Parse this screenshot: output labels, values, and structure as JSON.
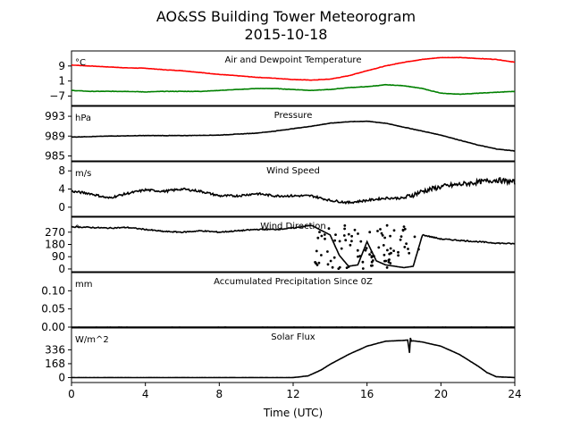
{
  "title": "AO&SS Building Tower Meteorogram",
  "subtitle": "2015-10-18",
  "chart_data": {
    "type": "line",
    "xlabel": "Time (UTC)",
    "xlim": [
      0,
      24
    ],
    "xticks": [
      "0",
      "4",
      "8",
      "12",
      "16",
      "20",
      "24"
    ],
    "grid": false,
    "panels": [
      {
        "title": "Air and Dewpoint Temperature",
        "unit": "°C",
        "ylim": [
          -12,
          17
        ],
        "yticks": [
          "9",
          "1",
          "−7"
        ],
        "ytick_values": [
          9,
          1,
          -7
        ],
        "series": [
          {
            "color": "#ff0000",
            "x": [
              0,
              1,
              2,
              3,
              4,
              5,
              6,
              7,
              8,
              9,
              10,
              11,
              12,
              13,
              14,
              15,
              16,
              17,
              18,
              19,
              20,
              21,
              22,
              23,
              24
            ],
            "values": [
              9.5,
              9,
              8.5,
              8,
              7.8,
              7,
              6.5,
              5.5,
              4.5,
              3.8,
              3,
              2.5,
              1.8,
              1.5,
              2,
              3.8,
              6.5,
              9,
              11,
              12.5,
              13.5,
              13.5,
              13,
              12.5,
              11
            ]
          },
          {
            "color": "#008000",
            "x": [
              0,
              1,
              2,
              3,
              4,
              5,
              6,
              7,
              8,
              9,
              10,
              11,
              12,
              13,
              14,
              15,
              16,
              17,
              18,
              19,
              20,
              21,
              22,
              23,
              24
            ],
            "values": [
              -4,
              -4.5,
              -4.5,
              -4.5,
              -4.8,
              -4.5,
              -4.5,
              -4.5,
              -4,
              -3.5,
              -3,
              -3,
              -3.5,
              -4,
              -3.5,
              -2.5,
              -2,
              -1,
              -1.5,
              -3,
              -5.5,
              -6,
              -5.5,
              -5,
              -4.5
            ]
          }
        ]
      },
      {
        "title": "Pressure",
        "unit": "hPa",
        "ylim": [
          984,
          995
        ],
        "yticks": [
          "993",
          "989",
          "985"
        ],
        "ytick_values": [
          993,
          989,
          985
        ],
        "series": [
          {
            "color": "#000000",
            "x": [
              0,
              2,
              4,
              6,
              8,
              9,
              10,
              11,
              12,
              13,
              14,
              15,
              16,
              17,
              18,
              19,
              20,
              21,
              22,
              23,
              24
            ],
            "values": [
              988.8,
              989,
              989.1,
              989.1,
              989.2,
              989.4,
              989.6,
              990,
              990.5,
              991,
              991.6,
              991.9,
              992,
              991.6,
              990.8,
              990,
              989.2,
              988.2,
              987.2,
              986.4,
              986
            ]
          }
        ]
      },
      {
        "title": "Wind Speed",
        "unit": "m/s",
        "ylim": [
          -2,
          10
        ],
        "yticks": [
          "8",
          "4",
          "0"
        ],
        "ytick_values": [
          8,
          4,
          0
        ],
        "series": [
          {
            "color": "#000000",
            "x": [
              0,
              1,
              2,
              3,
              4,
              5,
              6,
              7,
              8,
              9,
              10,
              11,
              12,
              13,
              14,
              15,
              16,
              17,
              18,
              19,
              20,
              21,
              22,
              23,
              24
            ],
            "values": [
              3.5,
              3,
              2,
              3,
              3.8,
              3.5,
              4,
              3.5,
              2.5,
              2.5,
              3,
              2.5,
              2.5,
              2.5,
              1.5,
              1,
              1.5,
              2,
              2,
              3.5,
              4.5,
              5,
              5.5,
              6,
              5.5
            ]
          }
        ]
      },
      {
        "title": "Wind Direction",
        "unit": "°",
        "ylim": [
          -20,
          380
        ],
        "yticks": [
          "270",
          "180",
          "90",
          "0"
        ],
        "ytick_values": [
          270,
          180,
          90,
          0
        ],
        "series": [
          {
            "color": "#000000",
            "x": [
              0,
              1,
              2,
              3,
              4,
              5,
              6,
              7,
              8,
              9,
              10,
              11,
              12,
              13,
              14,
              14.5,
              15,
              15.5,
              16,
              16.5,
              17,
              17.5,
              18,
              18.5,
              19,
              20,
              21,
              22,
              23,
              24
            ],
            "values": [
              310,
              305,
              300,
              305,
              290,
              275,
              270,
              280,
              270,
              280,
              290,
              290,
              300,
              320,
              250,
              100,
              20,
              30,
              200,
              60,
              30,
              20,
              10,
              20,
              250,
              220,
              210,
              200,
              190,
              185
            ]
          }
        ]
      },
      {
        "title": "Accumulated Precipitation Since 0Z",
        "unit": "mm",
        "ylim": [
          0,
          0.15
        ],
        "yticks": [
          "0.10",
          "0.05",
          "0.00"
        ],
        "ytick_values": [
          0.1,
          0.05,
          0
        ],
        "series": [
          {
            "color": "#000000",
            "x": [
              0,
              24
            ],
            "values": [
              0,
              0
            ]
          }
        ]
      },
      {
        "title": "Solar Flux",
        "unit": "W/m^2",
        "ylim": [
          -60,
          600
        ],
        "yticks": [
          "336",
          "168",
          "0"
        ],
        "ytick_values": [
          336,
          168,
          0
        ],
        "series": [
          {
            "color": "#000000",
            "x": [
              0,
              12,
              12.8,
              13.5,
              14,
              15,
              16,
              17,
              18,
              18.2,
              18.3,
              18.35,
              18.4,
              18.5,
              19,
              20,
              21,
              22,
              22.5,
              23,
              24
            ],
            "values": [
              0,
              0,
              20,
              90,
              160,
              280,
              380,
              440,
              450,
              455,
              300,
              480,
              440,
              445,
              430,
              380,
              280,
              140,
              60,
              10,
              0
            ]
          }
        ]
      }
    ]
  }
}
